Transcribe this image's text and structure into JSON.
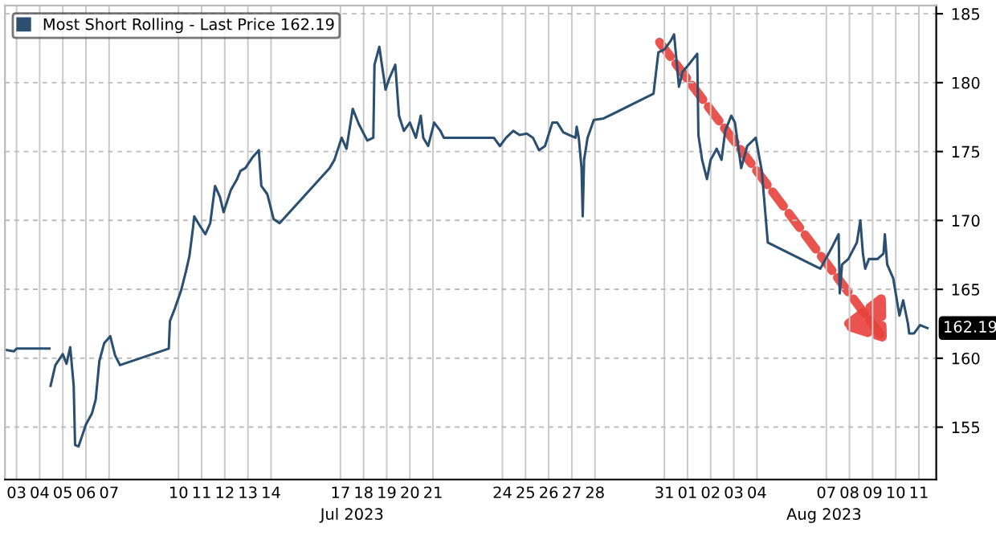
{
  "chart_data": {
    "type": "line",
    "series": [
      {
        "name": "Most Short Rolling - Last Price 162.19",
        "color": "#2b4f70",
        "x": [
          "2023-07-03T01:00",
          "2023-07-03T09:22",
          "2023-07-03T12:00",
          "2023-07-04T22:05",
          "2023-07-04T22:48",
          "2023-07-04T23:17",
          "2023-07-05T04:19",
          "2023-07-05T12:00",
          "2023-07-05T15:50",
          "2023-07-05T19:41",
          "2023-07-05T23:17",
          "2023-07-06T00:43",
          "2023-07-06T04:19",
          "2023-07-06T08:10",
          "2023-07-06T12:00",
          "2023-07-06T18:14",
          "2023-07-06T22:05",
          "2023-07-07T01:55",
          "2023-07-07T06:58",
          "2023-07-07T13:12",
          "2023-07-07T18:14",
          "2023-07-07T23:17",
          "2023-07-10T01:55",
          "2023-07-10T03:07",
          "2023-07-10T08:10",
          "2023-07-10T14:38",
          "2023-07-10T19:41",
          "2023-07-10T23:17",
          "2023-07-11T03:07",
          "2023-07-11T04:19",
          "2023-07-11T09:22",
          "2023-07-11T15:50",
          "2023-07-11T20:53",
          "2023-07-12T01:55",
          "2023-07-12T06:58",
          "2023-07-12T10:48",
          "2023-07-12T18:14",
          "2023-07-13T00:43",
          "2023-07-13T04:19",
          "2023-07-13T09:22",
          "2023-07-13T17:02",
          "2023-07-13T23:17",
          "2023-07-14T01:55",
          "2023-07-14T08:10",
          "2023-07-14T14:38",
          "2023-07-14T20:53",
          "2023-07-17T00:43",
          "2023-07-17T05:46",
          "2023-07-17T13:12",
          "2023-07-17T18:14",
          "2023-07-18T00:43",
          "2023-07-18T06:58",
          "2023-07-18T15:50",
          "2023-07-18T22:05",
          "2023-07-18T23:17",
          "2023-07-19T04:19",
          "2023-07-19T06:58",
          "2023-07-19T10:48",
          "2023-07-19T14:38",
          "2023-07-19T20:53",
          "2023-07-20T00:43",
          "2023-07-20T05:46",
          "2023-07-20T12:00",
          "2023-07-20T18:14",
          "2023-07-20T23:17",
          "2023-07-21T01:55",
          "2023-07-21T06:58",
          "2023-07-21T13:12",
          "2023-07-21T19:41",
          "2023-07-21T23:17",
          "2023-07-24T03:07",
          "2023-07-24T09:22",
          "2023-07-24T15:50",
          "2023-07-24T23:17",
          "2023-07-25T05:46",
          "2023-07-25T13:12",
          "2023-07-25T19:41",
          "2023-07-26T01:55",
          "2023-07-26T08:10",
          "2023-07-26T15:50",
          "2023-07-26T20:53",
          "2023-07-27T03:07",
          "2023-07-27T09:22",
          "2023-07-27T15:50",
          "2023-07-27T17:02",
          "2023-07-27T19:12",
          "2023-07-27T22:05",
          "2023-07-27T23:17",
          "2023-07-28T00:43",
          "2023-07-28T04:19",
          "2023-07-28T10:48",
          "2023-07-28T20:53",
          "2023-07-31T00:43",
          "2023-07-31T05:46",
          "2023-07-31T12:00",
          "2023-07-31T18:14",
          "2023-07-31T22:05",
          "2023-08-01T03:07",
          "2023-08-01T06:58",
          "2023-08-01T13:12",
          "2023-08-01T22:05",
          "2023-08-01T23:17",
          "2023-08-02T03:07",
          "2023-08-02T08:10",
          "2023-08-02T12:00",
          "2023-08-02T18:14",
          "2023-08-02T23:17",
          "2023-08-03T03:07",
          "2023-08-03T09:22",
          "2023-08-03T13:12",
          "2023-08-03T19:41",
          "2023-08-04T01:55",
          "2023-08-04T10:48",
          "2023-08-04T17:02",
          "2023-08-04T23:17",
          "2023-08-07T05:46",
          "2023-08-07T12:00",
          "2023-08-07T18:14",
          "2023-08-08T00:43",
          "2023-08-08T01:55",
          "2023-08-08T04:19",
          "2023-08-08T10:48",
          "2023-08-08T19:41",
          "2023-08-08T23:17",
          "2023-08-09T01:55",
          "2023-08-09T04:19",
          "2023-08-09T08:10",
          "2023-08-09T17:02",
          "2023-08-09T23:17",
          "2023-08-10T00:43",
          "2023-08-10T03:07",
          "2023-08-10T09:22",
          "2023-08-10T15:50",
          "2023-08-10T19:41",
          "2023-08-11T00:43",
          "2023-08-11T01:55",
          "2023-08-11T06:58",
          "2023-08-11T13:12",
          "2023-08-11T20:53"
        ],
        "values": [
          160.6,
          160.5,
          160.7,
          160.7,
          null,
          158.0,
          159.5,
          160.3,
          159.6,
          160.8,
          158.0,
          153.7,
          153.6,
          154.4,
          155.2,
          156.0,
          157.0,
          159.8,
          161.1,
          161.6,
          160.2,
          159.5,
          160.7,
          162.7,
          163.6,
          164.9,
          166.3,
          167.4,
          169.5,
          170.3,
          169.7,
          169.0,
          169.8,
          172.5,
          171.7,
          170.6,
          172.2,
          173.0,
          173.6,
          173.8,
          174.6,
          175.1,
          172.5,
          171.9,
          170.1,
          169.8,
          173.8,
          174.4,
          176.0,
          175.2,
          178.1,
          177.0,
          175.8,
          176.0,
          181.3,
          182.6,
          181.3,
          179.5,
          180.3,
          181.3,
          177.6,
          176.5,
          177.1,
          176.0,
          177.6,
          176.0,
          175.4,
          177.1,
          176.5,
          176.0,
          176.0,
          175.4,
          176.0,
          176.5,
          176.2,
          176.3,
          176.0,
          175.1,
          175.4,
          177.1,
          177.1,
          176.4,
          176.2,
          176.0,
          176.8,
          176.0,
          173.8,
          170.3,
          174.4,
          176.0,
          177.3,
          177.4,
          179.2,
          182.2,
          182.4,
          183.0,
          183.5,
          179.7,
          180.8,
          181.3,
          182.1,
          176.2,
          174.4,
          173.0,
          174.4,
          175.2,
          174.4,
          176.5,
          177.6,
          177.1,
          173.8,
          175.4,
          176.0,
          173.6,
          168.4,
          166.5,
          167.3,
          168.1,
          169.0,
          164.7,
          166.8,
          167.2,
          168.4,
          170.0,
          167.6,
          166.5,
          167.2,
          167.2,
          167.6,
          169.0,
          166.8,
          165.8,
          163.1,
          164.2,
          162.5,
          161.8,
          161.8,
          162.4,
          162.19
        ]
      }
    ],
    "xlim": [
      "2023-07-03T00:00",
      "2023-08-12T06:00"
    ],
    "xticks": [
      {
        "value": "2023-07-03T12:00",
        "label": "03"
      },
      {
        "value": "2023-07-04T12:00",
        "label": "04"
      },
      {
        "value": "2023-07-05T12:00",
        "label": "05"
      },
      {
        "value": "2023-07-06T12:00",
        "label": "06"
      },
      {
        "value": "2023-07-07T12:00",
        "label": "07"
      },
      {
        "value": "2023-07-10T12:00",
        "label": "10"
      },
      {
        "value": "2023-07-11T12:00",
        "label": "11"
      },
      {
        "value": "2023-07-12T12:00",
        "label": "12"
      },
      {
        "value": "2023-07-13T12:00",
        "label": "13"
      },
      {
        "value": "2023-07-14T12:00",
        "label": "14"
      },
      {
        "value": "2023-07-17T12:00",
        "label": "17"
      },
      {
        "value": "2023-07-18T12:00",
        "label": "18"
      },
      {
        "value": "2023-07-19T12:00",
        "label": "19"
      },
      {
        "value": "2023-07-20T12:00",
        "label": "20"
      },
      {
        "value": "2023-07-21T12:00",
        "label": "21"
      },
      {
        "value": "2023-07-24T12:00",
        "label": "24"
      },
      {
        "value": "2023-07-25T12:00",
        "label": "25"
      },
      {
        "value": "2023-07-26T12:00",
        "label": "26"
      },
      {
        "value": "2023-07-27T12:00",
        "label": "27"
      },
      {
        "value": "2023-07-28T12:00",
        "label": "28"
      },
      {
        "value": "2023-07-31T12:00",
        "label": "31"
      },
      {
        "value": "2023-08-01T12:00",
        "label": "01"
      },
      {
        "value": "2023-08-02T12:00",
        "label": "02"
      },
      {
        "value": "2023-08-03T12:00",
        "label": "03"
      },
      {
        "value": "2023-08-04T12:00",
        "label": "04"
      },
      {
        "value": "2023-08-07T12:00",
        "label": "07"
      },
      {
        "value": "2023-08-08T12:00",
        "label": "08"
      },
      {
        "value": "2023-08-09T12:00",
        "label": "09"
      },
      {
        "value": "2023-08-10T12:00",
        "label": "10"
      },
      {
        "value": "2023-08-11T12:00",
        "label": "11"
      }
    ],
    "x2lim": [
      "2023-07-03T00:00",
      "2023-08-12T06:00"
    ],
    "x2ticks": [
      {
        "value": "2023-07-18T00:00",
        "label": "Jul 2023"
      },
      {
        "value": "2023-08-07T09:36",
        "label": "Aug 2023"
      }
    ],
    "ylim": [
      151.2,
      185.6
    ],
    "yticks": [
      155,
      160,
      165,
      170,
      175,
      180,
      185
    ],
    "annotations": [
      {
        "text": "162.19",
        "y": 162.19
      }
    ],
    "grid": true,
    "legend": "top left",
    "line_style": "solid",
    "marker": "none"
  }
}
